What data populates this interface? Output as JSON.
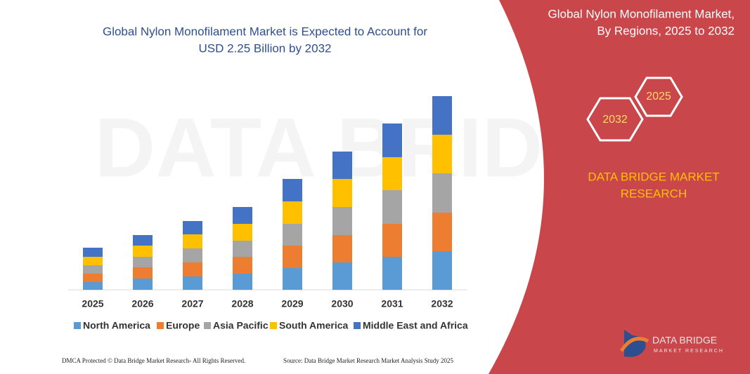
{
  "chart_data": {
    "type": "stacked-bar",
    "title": [
      "Global Nylon Monofilament Market is Expected to Account for",
      "USD 2.25 Billion by 2032"
    ],
    "categories": [
      "2025",
      "2026",
      "2027",
      "2028",
      "2029",
      "2030",
      "2031",
      "2032"
    ],
    "series": [
      {
        "name": "North America",
        "color": "#5b9bd5",
        "values": [
          11,
          16,
          19,
          23,
          31,
          39,
          47,
          55
        ]
      },
      {
        "name": "Europe",
        "color": "#ed7d31",
        "values": [
          12,
          16,
          20,
          24,
          32,
          39,
          47,
          55
        ]
      },
      {
        "name": "Asia Pacific",
        "color": "#a5a5a5",
        "values": [
          12,
          15,
          20,
          23,
          31,
          40,
          48,
          56
        ]
      },
      {
        "name": "South America",
        "color": "#ffc000",
        "values": [
          12,
          16,
          20,
          24,
          32,
          40,
          47,
          55
        ]
      },
      {
        "name": "Middle East and Africa",
        "color": "#4472c4",
        "values": [
          13,
          15,
          19,
          24,
          32,
          39,
          48,
          55
        ]
      }
    ],
    "ylim": [
      0,
      280
    ]
  },
  "panel": {
    "title": [
      "Global Nylon Monofilament Market,",
      "By Regions, 2025 to 2032"
    ],
    "hex_labels": [
      "2025",
      "2032"
    ],
    "brand": [
      "DATA BRIDGE MARKET",
      "RESEARCH"
    ],
    "logo": [
      "DATA BRIDGE",
      "MARKET RESEARCH"
    ]
  },
  "footer": {
    "left": "DMCA Protected © Data Bridge Market Research- All Rights Reserved.",
    "right": "Source: Data Bridge Market Research Market Analysis Study 2025"
  }
}
